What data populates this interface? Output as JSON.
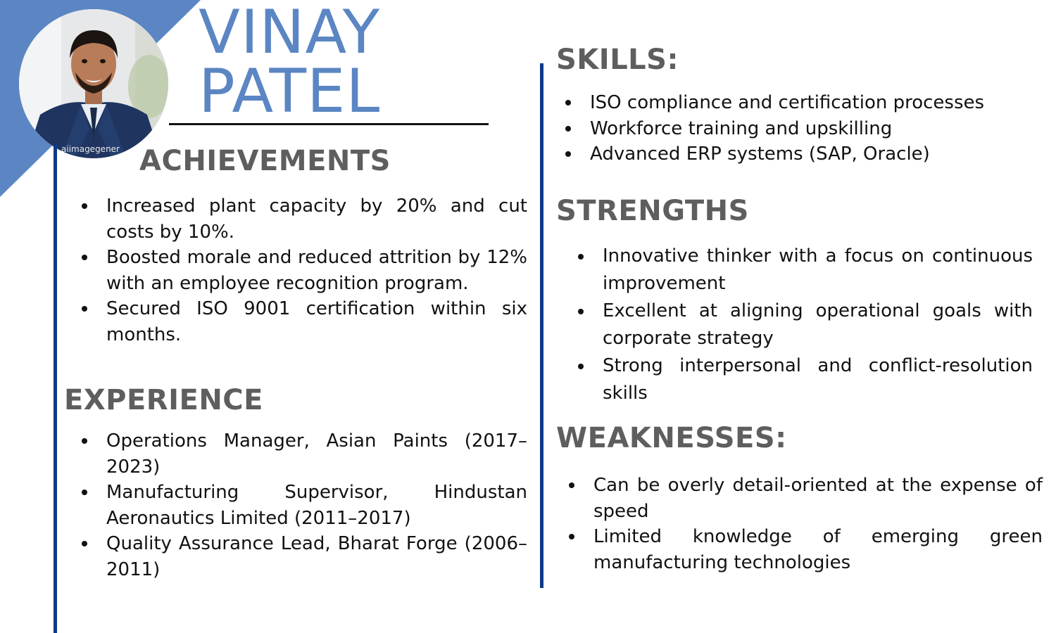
{
  "header": {
    "first_name": "VINAY",
    "last_name": "PATEL",
    "photo_watermark": "aiimagegener"
  },
  "achievements": {
    "heading": "ACHIEVEMENTS",
    "items": [
      "Increased plant capacity by 20% and cut costs by 10%.",
      "Boosted morale and reduced attrition by 12% with an employee recognition program.",
      "Secured ISO 9001 certification within six months."
    ]
  },
  "experience": {
    "heading": "EXPERIENCE",
    "items": [
      "Operations Manager, Asian Paints (2017–2023)",
      "Manufacturing Supervisor, Hindustan Aeronautics Limited (2011–2017)",
      "Quality Assurance Lead, Bharat Forge (2006–2011)"
    ]
  },
  "skills": {
    "heading": "SKILLS:",
    "items": [
      "ISO compliance and certification processes",
      "Workforce training and upskilling",
      "Advanced ERP systems (SAP, Oracle)"
    ]
  },
  "strengths": {
    "heading": "STRENGTHS",
    "items": [
      "Innovative thinker with a focus on continuous improvement",
      "Excellent at aligning operational goals with corporate strategy",
      "Strong interpersonal and conflict-resolution skills"
    ]
  },
  "weaknesses": {
    "heading": "WEAKNESSES:",
    "items": [
      "Can be overly detail-oriented at the expense of speed",
      "Limited knowledge of emerging green manufacturing technologies"
    ]
  },
  "colors": {
    "accent": "#5b86c3",
    "divider": "#0d3a8a",
    "heading": "#5e5e5e"
  }
}
